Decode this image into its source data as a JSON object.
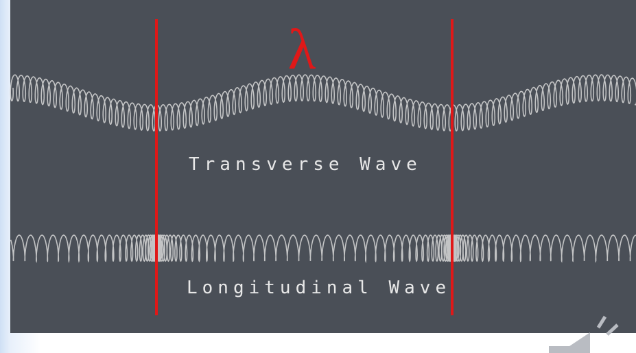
{
  "lambda_label": "λ",
  "waves": [
    {
      "label": "Transverse Wave"
    },
    {
      "label": "Longitudinal Wave"
    }
  ]
}
